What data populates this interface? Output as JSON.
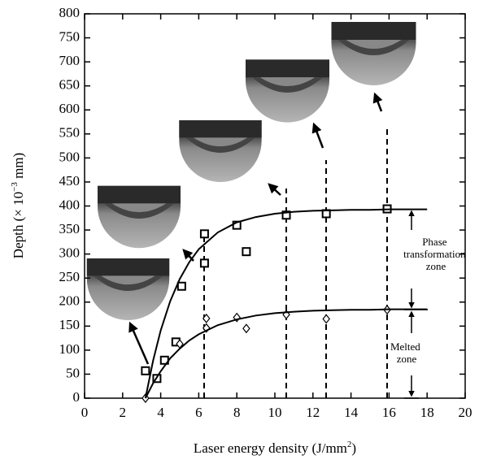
{
  "chart_data": {
    "type": "scatter",
    "xlabel": [
      "Laser energy density (J/mm",
      "2",
      ")"
    ],
    "ylabel": [
      "Depth (× 10",
      "−3",
      " mm)"
    ],
    "xlim": [
      0,
      20
    ],
    "xticks": [
      0,
      2,
      4,
      6,
      8,
      10,
      12,
      14,
      16,
      18,
      20
    ],
    "ylim": [
      0,
      800
    ],
    "yticks": [
      0,
      50,
      100,
      150,
      200,
      250,
      300,
      350,
      400,
      450,
      500,
      550,
      600,
      650,
      700,
      750,
      800
    ],
    "series": [
      {
        "type": "scatter",
        "marker": "square",
        "color": "#000",
        "x": [
          3.2,
          3.8,
          4.2,
          4.8,
          5.1,
          6.3,
          6.3,
          8,
          8.5,
          10.6,
          12.7,
          15.9
        ],
        "values": [
          57,
          41,
          79,
          117,
          233,
          281,
          342,
          360,
          305,
          381,
          384,
          394
        ]
      },
      {
        "type": "scatter",
        "marker": "diamond",
        "color": "#000",
        "x": [
          3.2,
          5.0,
          6.4,
          6.4,
          8,
          8.5,
          10.6,
          12.7,
          15.9
        ],
        "values": [
          0,
          113,
          146,
          166,
          168,
          145,
          174,
          165,
          184
        ]
      },
      {
        "type": "line",
        "color": "#000",
        "x": [
          3.2,
          3.6,
          4,
          4.5,
          5,
          5.5,
          6,
          7,
          8,
          9,
          10,
          11,
          12,
          13,
          14,
          15,
          16,
          17,
          18
        ],
        "values": [
          0,
          78,
          141,
          202,
          248,
          283,
          310,
          345,
          366,
          377,
          384,
          388,
          390,
          391,
          392,
          392,
          393,
          393,
          393
        ]
      },
      {
        "type": "line",
        "color": "#000",
        "x": [
          3.2,
          3.6,
          4,
          4.5,
          5,
          5.5,
          6,
          7,
          8,
          9,
          10,
          11,
          12,
          13,
          14,
          15,
          16,
          17,
          18
        ],
        "values": [
          0,
          31,
          56,
          83,
          103,
          120,
          133,
          152,
          164,
          172,
          177,
          180,
          182,
          183,
          184,
          184,
          185,
          185,
          185
        ]
      }
    ],
    "annotations": [
      {
        "lines": [
          "Phase",
          "transformation",
          "zone"
        ]
      },
      {
        "lines": [
          "Melted",
          "zone"
        ]
      }
    ]
  }
}
